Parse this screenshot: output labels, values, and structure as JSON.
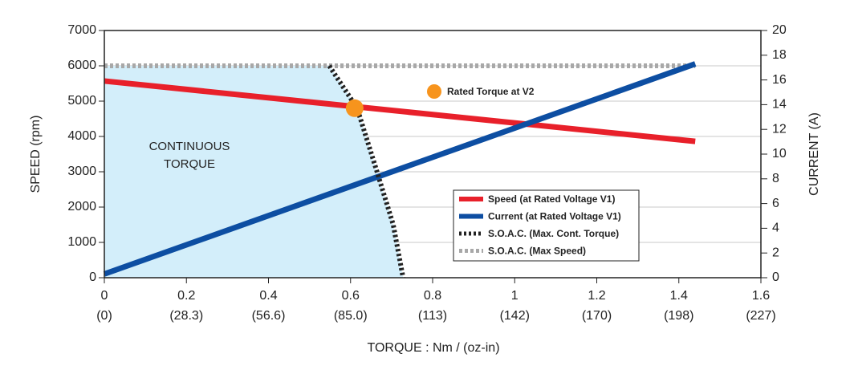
{
  "chart_data": {
    "type": "line",
    "xlabel": "TORQUE : Nm / (oz-in)",
    "ylabel": "SPEED (rpm)",
    "y2label": "CURRENT (A)",
    "xlim": [
      0,
      1.6
    ],
    "xticks": [
      0,
      0.2,
      0.4,
      0.6,
      0.8,
      1,
      1.2,
      1.4,
      1.6
    ],
    "xtick_sublabels": [
      "(0)",
      "(28.3)",
      "(56.6)",
      "(85.0)",
      "(113)",
      "(142)",
      "(170)",
      "(198)",
      "(227)"
    ],
    "ylim": [
      0,
      7000
    ],
    "yticks": [
      0,
      1000,
      2000,
      3000,
      4000,
      5000,
      6000,
      7000
    ],
    "y2lim": [
      0,
      20
    ],
    "y2ticks": [
      0,
      2,
      4,
      6,
      8,
      10,
      12,
      14,
      16,
      18,
      20
    ],
    "grid": true,
    "region_label": [
      "CONTINUOUS",
      "TORQUE"
    ],
    "region_color": "#d3eefa",
    "series": [
      {
        "name": "Speed (at Rated  Voltage V1)",
        "color": "#e8202a",
        "style": "solid",
        "x": [
          0,
          1.44
        ],
        "values": [
          5570,
          3860
        ]
      },
      {
        "name": "Current (at Rated Voltage V1)",
        "color": "#0d4ea2",
        "style": "solid",
        "axis": "y2",
        "x": [
          0,
          1.44
        ],
        "values": [
          0.3,
          17.3
        ]
      },
      {
        "name": "S.O.A.C. (Max. Cont. Torque)",
        "color": "#222222",
        "style": "dotted",
        "x": [
          0.548,
          0.616,
          0.665,
          0.704,
          0.728
        ],
        "values": [
          6000,
          4800,
          2980,
          1500,
          0
        ]
      },
      {
        "name": "S.O.A.C. (Max Speed)",
        "color": "#a8a8a8",
        "style": "dotted",
        "x": [
          0,
          1.44
        ],
        "values": [
          6000,
          6000
        ]
      }
    ],
    "points": [
      {
        "name": "Rated Torque at V2",
        "color": "#f7941d",
        "x": 0.61,
        "y": 4800
      }
    ]
  }
}
